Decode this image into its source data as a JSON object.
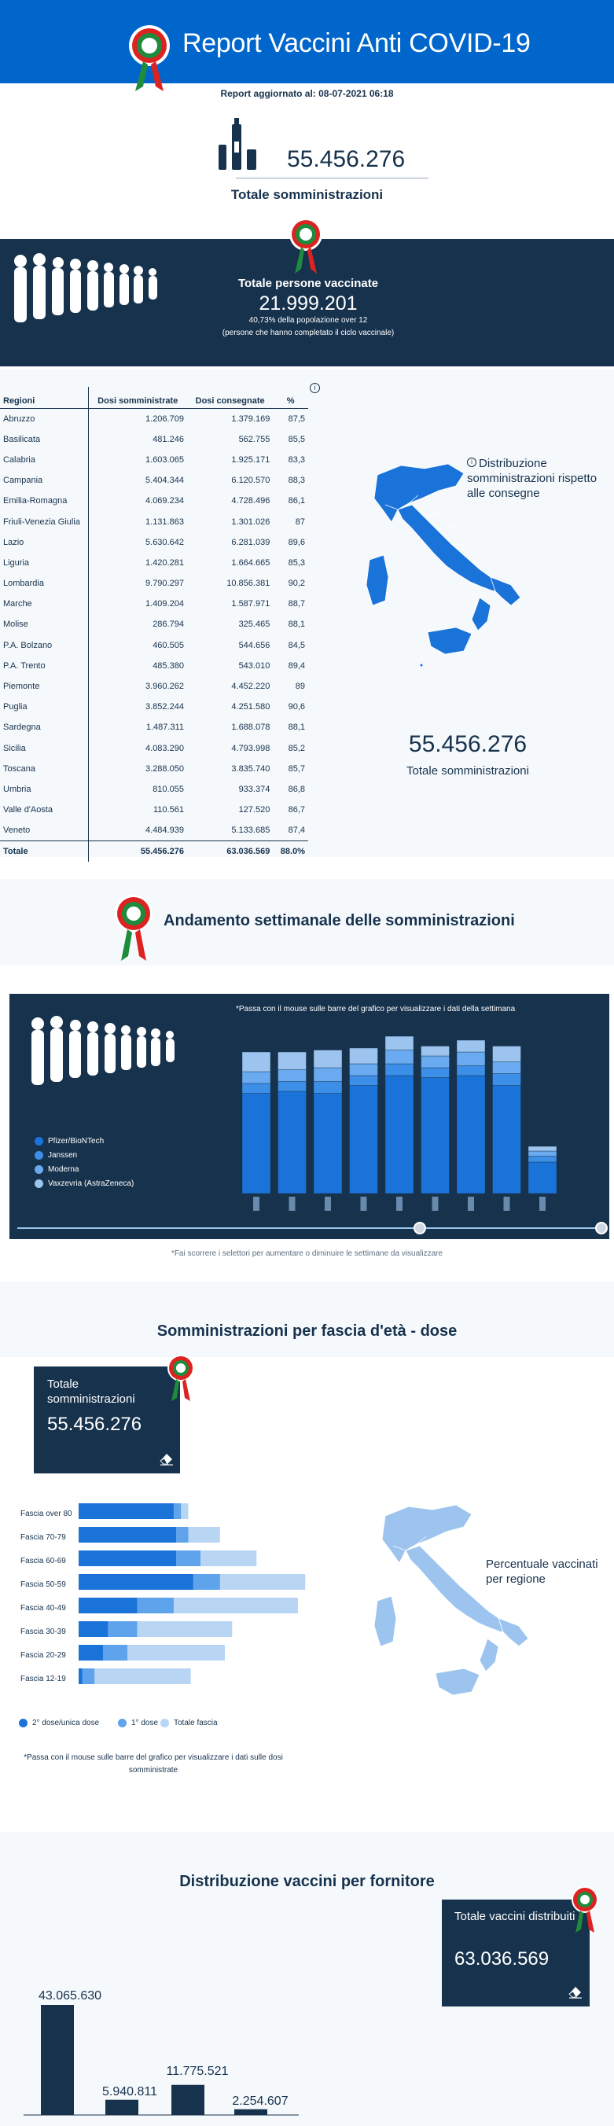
{
  "header": {
    "title": "Report Vaccini Anti COVID-19",
    "update": "Report aggiornato al: 08-07-2021 06:18"
  },
  "totals": {
    "administered": "55.456.276",
    "administered_label": "Totale somministrazioni"
  },
  "vaccinated": {
    "title": "Totale persone vaccinate",
    "value": "21.999.201",
    "sub1": "40,73% della popolazione over 12",
    "sub2": "(persone che hanno completato il ciclo vaccinale)"
  },
  "regions_table": {
    "headers": [
      "Regioni",
      "Dosi somministrate",
      "Dosi consegnate",
      "%"
    ],
    "rows": [
      [
        "Abruzzo",
        "1.206.709",
        "1.379.169",
        "87,5"
      ],
      [
        "Basilicata",
        "481.246",
        "562.755",
        "85,5"
      ],
      [
        "Calabria",
        "1.603.065",
        "1.925.171",
        "83,3"
      ],
      [
        "Campania",
        "5.404.344",
        "6.120.570",
        "88,3"
      ],
      [
        "Emilia-Romagna",
        "4.069.234",
        "4.728.496",
        "86,1"
      ],
      [
        "Friuli-Venezia Giulia",
        "1.131.863",
        "1.301.026",
        "87"
      ],
      [
        "Lazio",
        "5.630.642",
        "6.281.039",
        "89,6"
      ],
      [
        "Liguria",
        "1.420.281",
        "1.664.665",
        "85,3"
      ],
      [
        "Lombardia",
        "9.790.297",
        "10.856.381",
        "90,2"
      ],
      [
        "Marche",
        "1.409.204",
        "1.587.971",
        "88,7"
      ],
      [
        "Molise",
        "286.794",
        "325.465",
        "88,1"
      ],
      [
        "P.A. Bolzano",
        "460.505",
        "544.656",
        "84,5"
      ],
      [
        "P.A. Trento",
        "485.380",
        "543.010",
        "89,4"
      ],
      [
        "Piemonte",
        "3.960.262",
        "4.452.220",
        "89"
      ],
      [
        "Puglia",
        "3.852.244",
        "4.251.580",
        "90,6"
      ],
      [
        "Sardegna",
        "1.487.311",
        "1.688.078",
        "88,1"
      ],
      [
        "Sicilia",
        "4.083.290",
        "4.793.998",
        "85,2"
      ],
      [
        "Toscana",
        "3.288.050",
        "3.835.740",
        "85,7"
      ],
      [
        "Umbria",
        "810.055",
        "933.374",
        "86,8"
      ],
      [
        "Valle d'Aosta",
        "110.561",
        "127.520",
        "86,7"
      ],
      [
        "Veneto",
        "4.484.939",
        "5.133.685",
        "87,4"
      ]
    ],
    "total_row": [
      "Totale",
      "55.456.276",
      "63.036.569",
      "88.0%"
    ]
  },
  "map1": {
    "caption": "Distribuzione somministrazioni rispetto alle consegne",
    "total": "55.456.276",
    "total_label": "Totale somministrazioni"
  },
  "weekly": {
    "title": "Andamento settimanale delle somministrazioni",
    "note": "*Passa con il mouse sulle barre del grafico per visualizzare i dati della settimana",
    "footer": "*Fai scorrere i selettori per aumentare o diminuire le settimane da visualizzare",
    "legend": [
      "Pfizer/BioNTech",
      "Janssen",
      "Moderna",
      "Vaxzevria (AstraZeneca)"
    ]
  },
  "age": {
    "title": "Somministrazioni per fascia d'età - dose",
    "box_label": "Totale somministrazioni",
    "box_value": "55.456.276",
    "bands": [
      "Fascia over 80",
      "Fascia 70-79",
      "Fascia 60-69",
      "Fascia 50-59",
      "Fascia 40-49",
      "Fascia 30-39",
      "Fascia 20-29",
      "Fascia 12-19"
    ],
    "legend": [
      "2° dose/unica dose",
      "1° dose",
      "Totale fascia"
    ],
    "note": "*Passa con il mouse sulle barre del grafico per visualizzare i dati sulle dosi somministrate",
    "map_caption": "Percentuale vaccinati per regione"
  },
  "supplier": {
    "title": "Distribuzione vaccini per fornitore",
    "box_label": "Totale vaccini distribuiti",
    "box_value": "63.036.569",
    "values": [
      "43.065.630",
      "5.940.811",
      "11.775.521",
      "2.254.607"
    ]
  },
  "colors": {
    "primary": "#0066cc",
    "navy": "#17324d",
    "mid_blue": "#3d8ee6",
    "light_blue": "#9cc4ef",
    "pale_blue": "#c6dcf5"
  },
  "chart_data": [
    {
      "type": "bar",
      "stacked": true,
      "series": [
        {
          "name": "Pfizer/BioNTech",
          "values": [
            2.55,
            2.6,
            2.55,
            2.75,
            3.0,
            2.95,
            3.0,
            2.75,
            0.8
          ]
        },
        {
          "name": "Janssen",
          "values": [
            0.25,
            0.25,
            0.3,
            0.25,
            0.3,
            0.25,
            0.25,
            0.3,
            0.15
          ]
        },
        {
          "name": "Moderna",
          "values": [
            0.3,
            0.3,
            0.35,
            0.3,
            0.35,
            0.3,
            0.35,
            0.3,
            0.13
          ]
        },
        {
          "name": "Vaxzevria (AstraZeneca)",
          "values": [
            0.5,
            0.45,
            0.45,
            0.4,
            0.35,
            0.25,
            0.3,
            0.4,
            0.12
          ]
        }
      ]
    },
    {
      "type": "bar",
      "orientation": "horizontal",
      "categories": [
        "Fascia over 80",
        "Fascia 70-79",
        "Fascia 60-69",
        "Fascia 50-59",
        "Fascia 40-49",
        "Fascia 30-39",
        "Fascia 20-29",
        "Fascia 12-19"
      ],
      "series": [
        {
          "name": "2° dose/unica dose",
          "values": [
            3.9,
            4.0,
            4.0,
            4.7,
            2.4,
            1.2,
            1.0,
            0.15
          ]
        },
        {
          "name": "1° dose",
          "values": [
            0.3,
            0.5,
            1.0,
            1.1,
            1.5,
            1.2,
            1.0,
            0.5
          ]
        },
        {
          "name": "Totale fascia",
          "values": [
            4.5,
            5.8,
            7.3,
            9.3,
            9.0,
            6.3,
            6.0,
            4.6
          ]
        }
      ]
    },
    {
      "type": "bar",
      "series": [
        {
          "name": "",
          "values": [
            43065630,
            5940811,
            11775521,
            2254607
          ]
        }
      ]
    }
  ]
}
